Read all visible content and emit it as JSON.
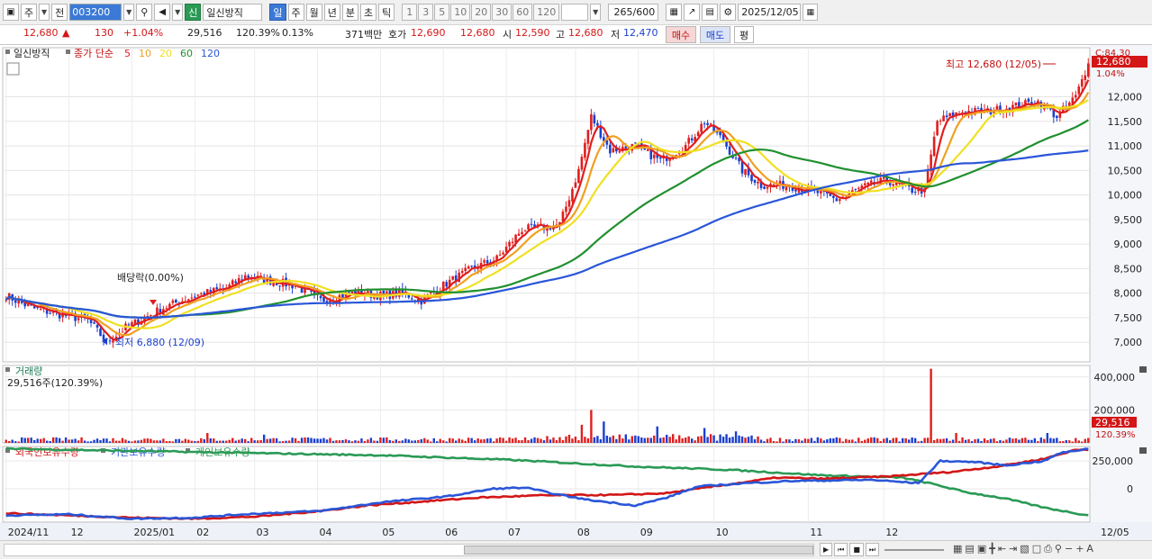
{
  "toolbar": {
    "period_select": "주",
    "prev_label": "전",
    "stock_code": "003200",
    "stock_badge": "신",
    "stock_name": "일신방직",
    "periods": [
      "일",
      "주",
      "월",
      "년",
      "분",
      "초",
      "틱"
    ],
    "active_period": "일",
    "intervals": [
      "1",
      "3",
      "5",
      "10",
      "20",
      "30",
      "60",
      "120"
    ],
    "count_value": "265",
    "count_total": "/600",
    "date": "2025/12/05"
  },
  "quote": {
    "price": "12,680",
    "change": "130",
    "change_pct": "+1.04%",
    "volume": "29,516",
    "volume_ratio": "120.39%",
    "turnover": "0.13%",
    "amount": "371백만",
    "bid_label": "호가",
    "ask": "12,690",
    "bid": "12,680",
    "open_label": "시",
    "open": "12,590",
    "high_label": "고",
    "high": "12,680",
    "low_label": "저",
    "low": "12,470",
    "buy_label": "매수",
    "sell_label": "매도",
    "eval_label": "평"
  },
  "chart_labels": {
    "chart_name": "일신방직",
    "ma_title": "종가 단순",
    "ma_periods": [
      "5",
      "10",
      "20",
      "60",
      "120"
    ],
    "ma_colors": [
      "#e01e1e",
      "#f0a020",
      "#f0e020",
      "#20902f",
      "#2a56d8"
    ],
    "high_note": "최고 12,680 (12/05)",
    "low_note": "최저 6,880 (12/09)",
    "dividend_note": "배당락(0.00%)",
    "c_label": "C:84.30",
    "current_price_tag": "12,680",
    "current_pct_tag": "1.04%",
    "volume_title": "거래량",
    "volume_value": "29,516주(120.39%)",
    "volume_tag": "29,516",
    "volume_tag_pct": "120.39%",
    "holdings_titles": [
      "외국인보유수량",
      "기관보유수량",
      "개인보유수량"
    ],
    "holdings_colors": [
      "#d31616",
      "#2a56d8",
      "#2a9a55"
    ],
    "x_ticks": [
      "2024/11",
      "12",
      "2025/01",
      "02",
      "03",
      "04",
      "05",
      "06",
      "07",
      "08",
      "09",
      "10",
      "11",
      "12"
    ],
    "right_x_label": "12/05"
  },
  "chart_data": {
    "type": "line",
    "price_axis": {
      "ticks": [
        7000,
        7500,
        8000,
        8500,
        9000,
        9500,
        10000,
        10500,
        11000,
        11500,
        12000
      ],
      "range": [
        6600,
        13000
      ]
    },
    "volume_axis": {
      "ticks": [
        0,
        200000,
        400000
      ],
      "tick_labels": [
        "200,000",
        "400,000"
      ],
      "range": [
        0,
        470000
      ]
    },
    "holdings_axis": {
      "ticks": [
        0,
        250000
      ],
      "tick_labels": [
        "0",
        "250,000"
      ],
      "range": [
        -300000,
        380000
      ]
    },
    "close_keypoints": [
      [
        0,
        7950
      ],
      [
        8,
        7700
      ],
      [
        18,
        7550
      ],
      [
        26,
        7450
      ],
      [
        32,
        7000
      ],
      [
        38,
        7300
      ],
      [
        50,
        7700
      ],
      [
        60,
        7950
      ],
      [
        70,
        8100
      ],
      [
        76,
        8350
      ],
      [
        84,
        8250
      ],
      [
        92,
        8150
      ],
      [
        100,
        7850
      ],
      [
        110,
        8000
      ],
      [
        120,
        7950
      ],
      [
        126,
        8000
      ],
      [
        132,
        7850
      ],
      [
        140,
        8200
      ],
      [
        148,
        8500
      ],
      [
        156,
        8700
      ],
      [
        164,
        9300
      ],
      [
        172,
        9350
      ],
      [
        176,
        9400
      ],
      [
        182,
        10500
      ],
      [
        186,
        11600
      ],
      [
        192,
        10900
      ],
      [
        200,
        11000
      ],
      [
        208,
        10700
      ],
      [
        216,
        11000
      ],
      [
        222,
        11500
      ],
      [
        228,
        11100
      ],
      [
        234,
        10500
      ],
      [
        240,
        10200
      ],
      [
        248,
        10200
      ],
      [
        256,
        10100
      ],
      [
        264,
        9900
      ],
      [
        272,
        10150
      ],
      [
        280,
        10300
      ],
      [
        288,
        10100
      ],
      [
        292,
        10100
      ],
      [
        296,
        11500
      ],
      [
        304,
        11700
      ],
      [
        312,
        11700
      ],
      [
        320,
        11800
      ],
      [
        328,
        11900
      ],
      [
        334,
        11600
      ],
      [
        340,
        12000
      ],
      [
        344,
        12680
      ]
    ],
    "volume_spikes": [
      [
        64,
        60000
      ],
      [
        82,
        50000
      ],
      [
        183,
        110000
      ],
      [
        186,
        200000
      ],
      [
        190,
        130000
      ],
      [
        207,
        100000
      ],
      [
        222,
        90000
      ],
      [
        232,
        70000
      ],
      [
        294,
        450000
      ],
      [
        302,
        60000
      ],
      [
        331,
        60000
      ],
      [
        344,
        29516
      ]
    ],
    "foreign_keypoints": [
      [
        0,
        -220000
      ],
      [
        20,
        -240000
      ],
      [
        40,
        -260000
      ],
      [
        60,
        -270000
      ],
      [
        80,
        -250000
      ],
      [
        100,
        -200000
      ],
      [
        115,
        -150000
      ],
      [
        130,
        -120000
      ],
      [
        150,
        -80000
      ],
      [
        170,
        -60000
      ],
      [
        195,
        -55000
      ],
      [
        210,
        -40000
      ],
      [
        220,
        0
      ],
      [
        230,
        40000
      ],
      [
        245,
        100000
      ],
      [
        260,
        90000
      ],
      [
        280,
        110000
      ],
      [
        300,
        150000
      ],
      [
        315,
        200000
      ],
      [
        330,
        270000
      ],
      [
        340,
        350000
      ],
      [
        344,
        350000
      ]
    ],
    "institution_keypoints": [
      [
        0,
        -240000
      ],
      [
        20,
        -230000
      ],
      [
        40,
        -270000
      ],
      [
        60,
        -260000
      ],
      [
        75,
        -230000
      ],
      [
        100,
        -200000
      ],
      [
        120,
        -120000
      ],
      [
        140,
        -70000
      ],
      [
        155,
        0
      ],
      [
        165,
        10000
      ],
      [
        175,
        -50000
      ],
      [
        185,
        -100000
      ],
      [
        200,
        -150000
      ],
      [
        210,
        -80000
      ],
      [
        220,
        20000
      ],
      [
        235,
        50000
      ],
      [
        250,
        70000
      ],
      [
        275,
        80000
      ],
      [
        290,
        50000
      ],
      [
        297,
        250000
      ],
      [
        308,
        240000
      ],
      [
        318,
        210000
      ],
      [
        330,
        250000
      ],
      [
        335,
        320000
      ],
      [
        344,
        360000
      ]
    ],
    "individual_keypoints": [
      [
        0,
        360000
      ],
      [
        40,
        340000
      ],
      [
        80,
        320000
      ],
      [
        120,
        300000
      ],
      [
        160,
        260000
      ],
      [
        200,
        200000
      ],
      [
        230,
        170000
      ],
      [
        260,
        120000
      ],
      [
        285,
        100000
      ],
      [
        295,
        40000
      ],
      [
        305,
        -30000
      ],
      [
        318,
        -90000
      ],
      [
        330,
        -170000
      ],
      [
        344,
        -240000
      ]
    ],
    "dates_last": "12/05"
  }
}
